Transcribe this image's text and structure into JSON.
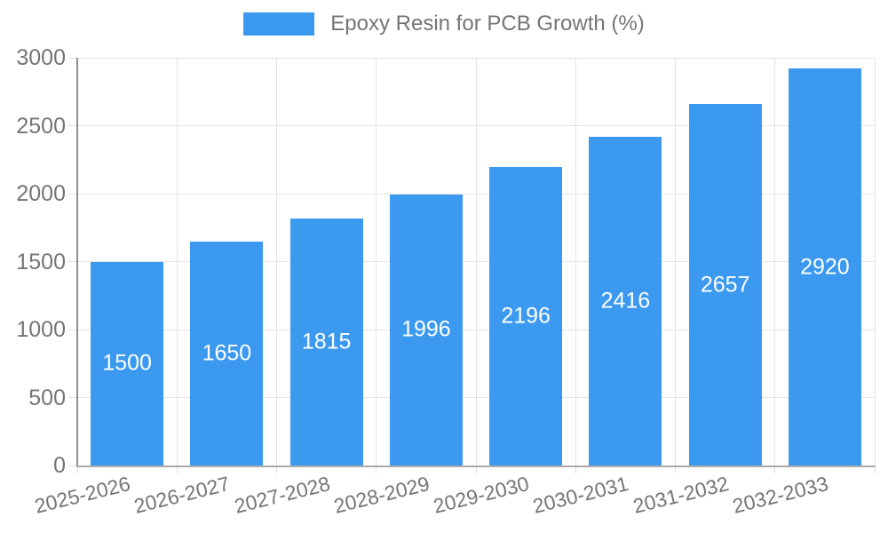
{
  "legend": {
    "label": "Epoxy Resin for PCB Growth (%)"
  },
  "chart_data": {
    "type": "bar",
    "title": "Epoxy Resin for PCB Growth (%)",
    "categories": [
      "2025-2026",
      "2026-2027",
      "2027-2028",
      "2028-2029",
      "2029-2030",
      "2030-2031",
      "2031-2032",
      "2032-2033"
    ],
    "values": [
      1500,
      1650,
      1815,
      1996,
      2196,
      2416,
      2657,
      2920
    ],
    "xlabel": "",
    "ylabel": "",
    "ylim": [
      0,
      3000
    ],
    "yticks": [
      0,
      500,
      1000,
      1500,
      2000,
      2500,
      3000
    ],
    "grid": true,
    "legend_position": "top",
    "bar_value_labels": true,
    "colors": {
      "bar": "#3B99EF",
      "bar_value_label": "#FFFFFF",
      "axis_text": "#757575",
      "grid_line": "#E3E3E3",
      "y_axis_line": "#8F8F8F",
      "x_axis_line": "#ABABAB",
      "legend_text": "#757575"
    }
  }
}
